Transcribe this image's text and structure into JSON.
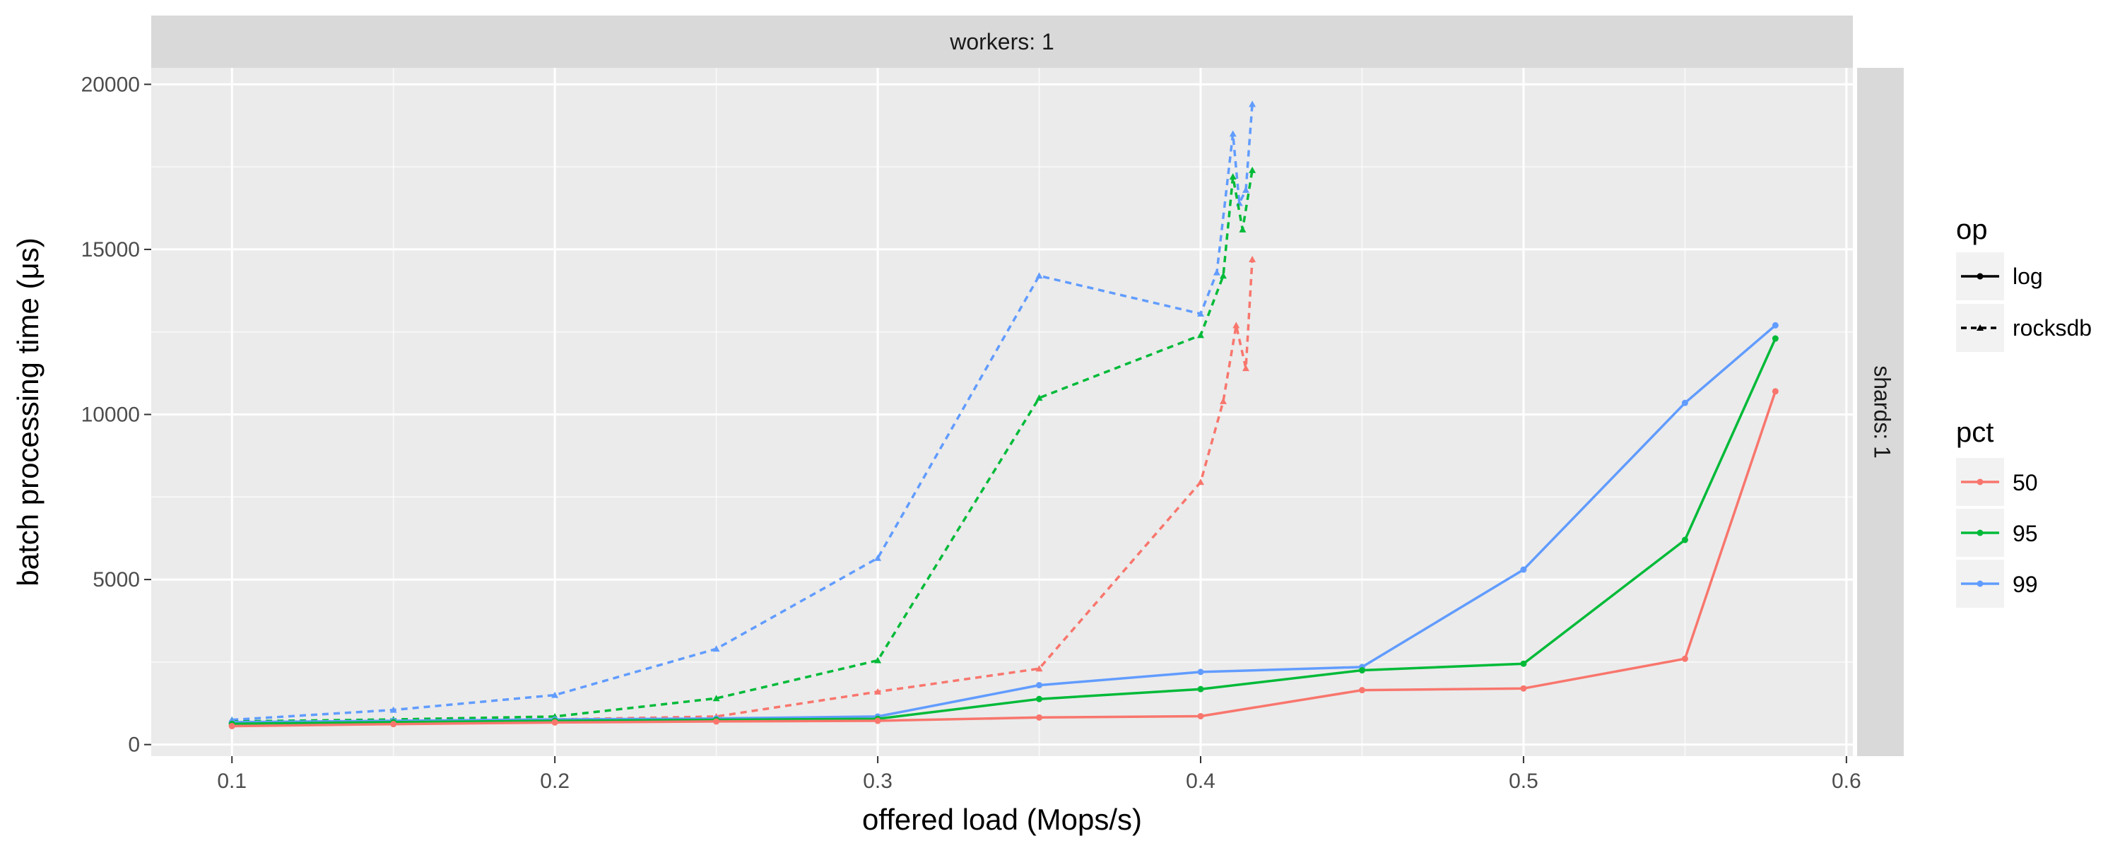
{
  "chart_data": {
    "type": "line",
    "facet": {
      "top_strip": "workers: 1",
      "right_strip": "shards: 1"
    },
    "xlabel": "offered load (Mops/s)",
    "ylabel": "batch processing time (μs)",
    "xlim": [
      0.075,
      0.602
    ],
    "ylim": [
      -350,
      20500
    ],
    "x_ticks": [
      0.1,
      0.2,
      0.3,
      0.4,
      0.5,
      0.6
    ],
    "x_tick_labels": [
      "0.1",
      "0.2",
      "0.3",
      "0.4",
      "0.5",
      "0.6"
    ],
    "y_ticks": [
      0,
      5000,
      10000,
      15000,
      20000
    ],
    "y_tick_labels": [
      "0",
      "5000",
      "10000",
      "15000",
      "20000"
    ],
    "grid": true,
    "legend_position": "right",
    "legends": [
      {
        "title": "op",
        "entries": [
          {
            "label": "log",
            "linetype": "solid",
            "marker": "circle"
          },
          {
            "label": "rocksdb",
            "linetype": "dashed",
            "marker": "triangle"
          }
        ]
      },
      {
        "title": "pct",
        "entries": [
          {
            "label": "50",
            "color": "#F8766D"
          },
          {
            "label": "95",
            "color": "#00BA38"
          },
          {
            "label": "99",
            "color": "#619CFF"
          }
        ]
      }
    ],
    "colors": {
      "50": "#F8766D",
      "95": "#00BA38",
      "99": "#619CFF",
      "panel_bg": "#EBEBEB",
      "strip_bg": "#D9D9D9",
      "grid": "#FFFFFF"
    },
    "series": [
      {
        "op": "rocksdb",
        "pct": "99",
        "points": [
          [
            0.1,
            750
          ],
          [
            0.15,
            1050
          ],
          [
            0.2,
            1500
          ],
          [
            0.25,
            2900
          ],
          [
            0.3,
            5650
          ],
          [
            0.35,
            14200
          ],
          [
            0.4,
            13050
          ],
          [
            0.405,
            14300
          ],
          [
            0.41,
            18500
          ],
          [
            0.412,
            16400
          ],
          [
            0.414,
            16800
          ],
          [
            0.416,
            19400
          ]
        ]
      },
      {
        "op": "rocksdb",
        "pct": "95",
        "points": [
          [
            0.1,
            700
          ],
          [
            0.15,
            760
          ],
          [
            0.2,
            850
          ],
          [
            0.25,
            1400
          ],
          [
            0.3,
            2550
          ],
          [
            0.35,
            10500
          ],
          [
            0.4,
            12400
          ],
          [
            0.407,
            14200
          ],
          [
            0.41,
            17200
          ],
          [
            0.413,
            15600
          ],
          [
            0.416,
            17400
          ]
        ]
      },
      {
        "op": "rocksdb",
        "pct": "50",
        "points": [
          [
            0.1,
            650
          ],
          [
            0.15,
            700
          ],
          [
            0.2,
            760
          ],
          [
            0.25,
            850
          ],
          [
            0.3,
            1600
          ],
          [
            0.35,
            2300
          ],
          [
            0.4,
            7950
          ],
          [
            0.407,
            10400
          ],
          [
            0.411,
            12700
          ],
          [
            0.414,
            11400
          ],
          [
            0.416,
            14700
          ]
        ]
      },
      {
        "op": "log",
        "pct": "99",
        "points": [
          [
            0.1,
            680
          ],
          [
            0.15,
            720
          ],
          [
            0.2,
            760
          ],
          [
            0.25,
            790
          ],
          [
            0.3,
            850
          ],
          [
            0.35,
            1800
          ],
          [
            0.4,
            2200
          ],
          [
            0.45,
            2350
          ],
          [
            0.5,
            5300
          ],
          [
            0.55,
            10350
          ],
          [
            0.578,
            12700
          ]
        ]
      },
      {
        "op": "log",
        "pct": "95",
        "points": [
          [
            0.1,
            630
          ],
          [
            0.15,
            680
          ],
          [
            0.2,
            720
          ],
          [
            0.25,
            750
          ],
          [
            0.3,
            780
          ],
          [
            0.35,
            1380
          ],
          [
            0.4,
            1680
          ],
          [
            0.45,
            2250
          ],
          [
            0.5,
            2450
          ],
          [
            0.55,
            6200
          ],
          [
            0.578,
            12300
          ]
        ]
      },
      {
        "op": "log",
        "pct": "50",
        "points": [
          [
            0.1,
            560
          ],
          [
            0.15,
            620
          ],
          [
            0.2,
            670
          ],
          [
            0.25,
            700
          ],
          [
            0.3,
            720
          ],
          [
            0.35,
            820
          ],
          [
            0.4,
            860
          ],
          [
            0.45,
            1650
          ],
          [
            0.5,
            1700
          ],
          [
            0.55,
            2600
          ],
          [
            0.578,
            10700
          ]
        ]
      }
    ]
  }
}
